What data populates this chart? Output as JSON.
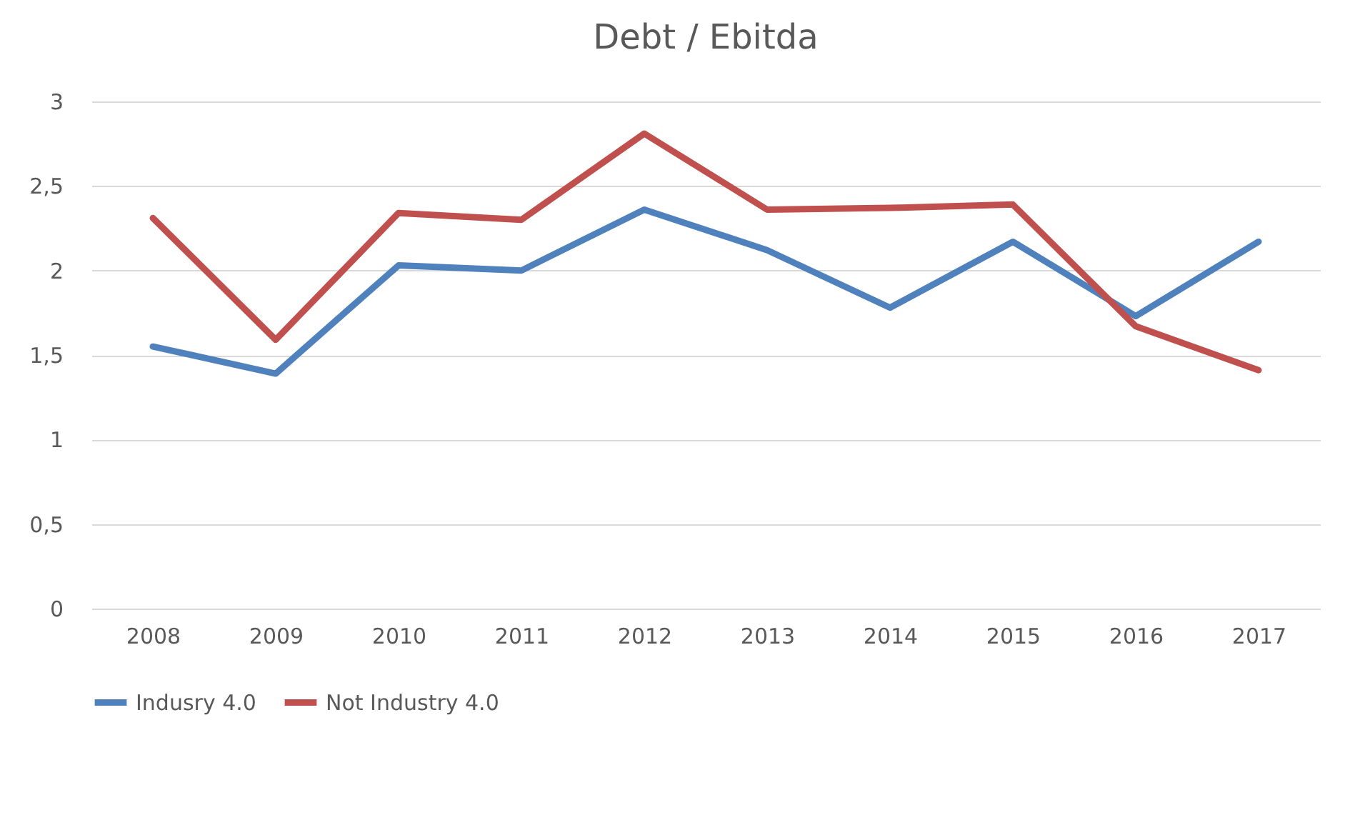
{
  "chart_data": {
    "type": "line",
    "title": "Debt / Ebitda",
    "categories": [
      "2008",
      "2009",
      "2010",
      "2011",
      "2012",
      "2013",
      "2014",
      "2015",
      "2016",
      "2017"
    ],
    "series": [
      {
        "name": "Indusry 4.0",
        "color": "#4f81bd",
        "values": [
          1.55,
          1.39,
          2.03,
          2.0,
          2.36,
          2.12,
          1.78,
          2.17,
          1.73,
          2.17
        ]
      },
      {
        "name": "Not Industry 4.0",
        "color": "#c0504d",
        "values": [
          2.31,
          1.59,
          2.34,
          2.3,
          2.81,
          2.36,
          2.37,
          2.39,
          1.67,
          1.41
        ]
      }
    ],
    "ylim": [
      0,
      3
    ],
    "yticks": [
      0,
      {
        "value": 0.5,
        "label": "0,5"
      },
      1,
      {
        "value": 1.5,
        "label": "1,5"
      },
      2,
      {
        "value": 2.5,
        "label": "2,5"
      },
      3
    ],
    "grid": "y",
    "legend": "bottom",
    "marker": "none",
    "line_style": "solid"
  }
}
